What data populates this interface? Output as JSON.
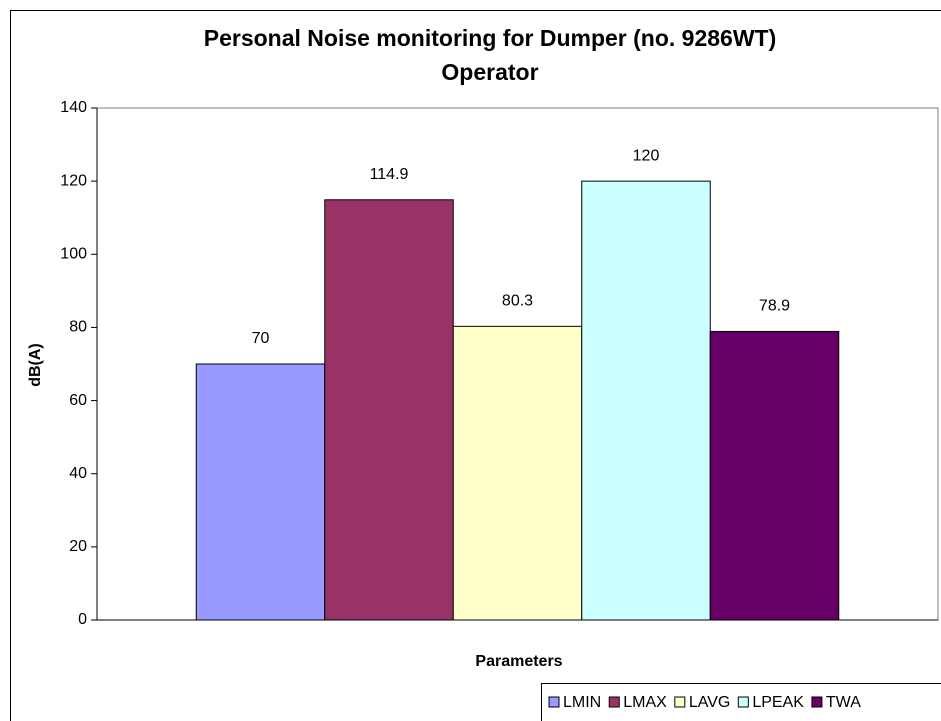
{
  "chart_data": {
    "type": "bar",
    "title": [
      "Personal Noise monitoring for Dumper (no. 9286WT)",
      "Operator"
    ],
    "y_label": "dB(A)",
    "x_label": "Parameters",
    "series": [
      {
        "name": "LMIN",
        "color": "#9999ff",
        "values": [
          70
        ]
      },
      {
        "name": "LMAX",
        "color": "#993366",
        "values": [
          114.9
        ]
      },
      {
        "name": "LAVG",
        "color": "#ffffcc",
        "values": [
          80.3
        ]
      },
      {
        "name": "LPEAK",
        "color": "#ccffff",
        "values": [
          120
        ]
      },
      {
        "name": "TWA",
        "color": "#660066",
        "values": [
          78.9
        ]
      }
    ],
    "ylim": [
      0,
      140
    ],
    "yticks": [
      0,
      20,
      40,
      60,
      80,
      100,
      120,
      140
    ],
    "legend": "bottom-right",
    "data_labels": true
  }
}
